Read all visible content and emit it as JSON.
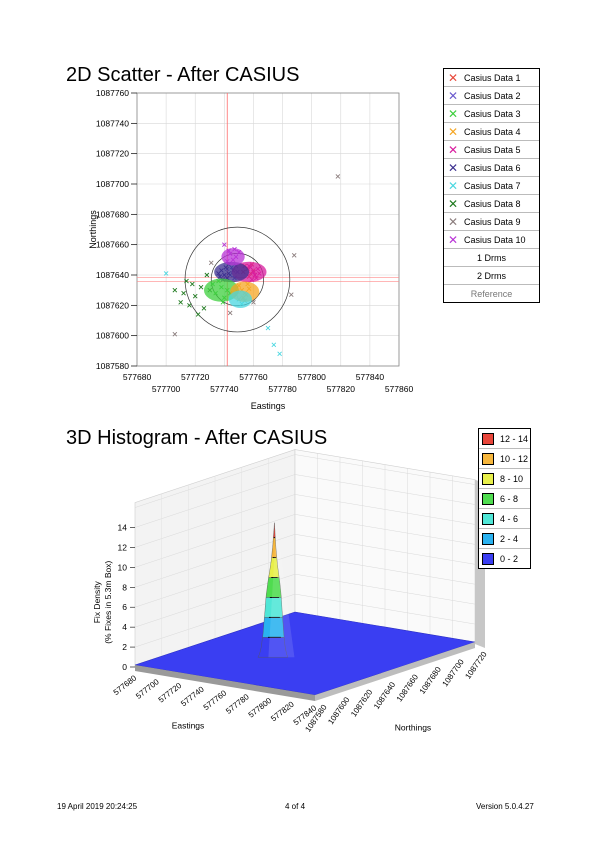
{
  "page": {
    "footer_left": "19 April 2019 20:24:25",
    "footer_center": "4 of 4",
    "footer_right": "Version 5.0.4.27"
  },
  "chart_data": [
    {
      "type": "scatter",
      "title": "2D Scatter - After CASIUS",
      "xlabel": "Eastings",
      "ylabel": "Northings",
      "xlim": [
        577680,
        577860
      ],
      "ylim": [
        1087580,
        1087760
      ],
      "x_ticks_upper": [
        "577680",
        "577720",
        "577760",
        "577800",
        "577840"
      ],
      "x_ticks_lower": [
        "577700",
        "577740",
        "577780",
        "577820",
        "577860"
      ],
      "y_ticks": [
        "1087760",
        "1087740",
        "1087720",
        "1087700",
        "1087680",
        "1087660",
        "1087640",
        "1087620",
        "1087600",
        "1087580"
      ],
      "y_tick_values": [
        1087760,
        1087740,
        1087720,
        1087700,
        1087680,
        1087660,
        1087640,
        1087620,
        1087600,
        1087580
      ],
      "grid": true,
      "legend_position": "right",
      "reference": {
        "x": 577742,
        "y": 1087637
      },
      "circles": [
        {
          "label": "1 Drms",
          "cx": 577749,
          "cy": 1087637,
          "r": 9
        },
        {
          "label": "2 Drms",
          "cx": 577749,
          "cy": 1087637,
          "r": 18
        }
      ],
      "series": [
        {
          "name": "Casius Data 1",
          "color": "#e8483a",
          "points": [
            [
              577756,
              1087644
            ],
            [
              577758,
              1087641
            ],
            [
              577754,
              1087646
            ],
            [
              577760,
              1087643
            ],
            [
              577757,
              1087639
            ],
            [
              577759,
              1087647
            ],
            [
              577753,
              1087642
            ],
            [
              577761,
              1087640
            ]
          ]
        },
        {
          "name": "Casius Data 2",
          "color": "#6a5acd",
          "points": [
            [
              577746,
              1087643
            ],
            [
              577744,
              1087640
            ],
            [
              577748,
              1087646
            ],
            [
              577742,
              1087644
            ],
            [
              577747,
              1087638
            ],
            [
              577743,
              1087647
            ],
            [
              577749,
              1087642
            ],
            [
              577745,
              1087645
            ]
          ]
        },
        {
          "name": "Casius Data 3",
          "color": "#3ecf3e",
          "points": [
            [
              577738,
              1087632
            ],
            [
              577734,
              1087628
            ],
            [
              577740,
              1087625
            ],
            [
              577736,
              1087636
            ],
            [
              577742,
              1087630
            ],
            [
              577732,
              1087634
            ],
            [
              577739,
              1087622
            ],
            [
              577744,
              1087628
            ]
          ]
        },
        {
          "name": "Casius Data 4",
          "color": "#f5a623",
          "points": [
            [
              577752,
              1087630
            ],
            [
              577755,
              1087627
            ],
            [
              577750,
              1087633
            ],
            [
              577757,
              1087631
            ],
            [
              577753,
              1087625
            ],
            [
              577749,
              1087629
            ],
            [
              577756,
              1087634
            ],
            [
              577754,
              1087628
            ]
          ]
        },
        {
          "name": "Casius Data 5",
          "color": "#d81b9e",
          "points": [
            [
              577760,
              1087642
            ],
            [
              577762,
              1087638
            ],
            [
              577758,
              1087645
            ],
            [
              577763,
              1087644
            ],
            [
              577761,
              1087640
            ],
            [
              577764,
              1087641
            ],
            [
              577759,
              1087637
            ],
            [
              577757,
              1087646
            ]
          ]
        },
        {
          "name": "Casius Data 6",
          "color": "#3b2f8f",
          "points": [
            [
              577740,
              1087640
            ],
            [
              577738,
              1087643
            ],
            [
              577742,
              1087638
            ],
            [
              577736,
              1087641
            ],
            [
              577741,
              1087645
            ],
            [
              577739,
              1087637
            ],
            [
              577743,
              1087641
            ],
            [
              577737,
              1087639
            ]
          ]
        },
        {
          "name": "Casius Data 7",
          "color": "#4ad7e0",
          "points": [
            [
              577750,
              1087624
            ],
            [
              577752,
              1087621
            ],
            [
              577748,
              1087627
            ],
            [
              577754,
              1087623
            ],
            [
              577700,
              1087641
            ],
            [
              577770,
              1087605
            ],
            [
              577778,
              1087588
            ],
            [
              577774,
              1087594
            ]
          ]
        },
        {
          "name": "Casius Data 8",
          "color": "#1f7a1f",
          "points": [
            [
              577720,
              1087626
            ],
            [
              577716,
              1087620
            ],
            [
              577724,
              1087632
            ],
            [
              577712,
              1087628
            ],
            [
              577726,
              1087618
            ],
            [
              577718,
              1087634
            ],
            [
              577710,
              1087622
            ],
            [
              577730,
              1087630
            ],
            [
              577714,
              1087636
            ],
            [
              577722,
              1087614
            ],
            [
              577706,
              1087630
            ],
            [
              577728,
              1087640
            ]
          ]
        },
        {
          "name": "Casius Data 9",
          "color": "#8b7d7d",
          "points": [
            [
              577818,
              1087705
            ],
            [
              577788,
              1087653
            ],
            [
              577786,
              1087627
            ],
            [
              577706,
              1087601
            ],
            [
              577731,
              1087648
            ],
            [
              577760,
              1087622
            ],
            [
              577744,
              1087615
            ]
          ]
        },
        {
          "name": "Casius Data 10",
          "color": "#b833d6",
          "points": [
            [
              577746,
              1087650
            ],
            [
              577744,
              1087654
            ],
            [
              577748,
              1087652
            ],
            [
              577742,
              1087649
            ],
            [
              577747,
              1087657
            ],
            [
              577743,
              1087656
            ],
            [
              577740,
              1087660
            ],
            [
              577750,
              1087655
            ]
          ]
        }
      ],
      "legend_extra": [
        "1 Drms",
        "2 Drms",
        "Reference"
      ]
    },
    {
      "type": "heatmap",
      "subtype": "3d-surface-histogram",
      "title": "3D Histogram - After CASIUS",
      "xlabel": "Eastings",
      "ylabel": "Northings",
      "zlabel_line1": "Fix Density",
      "zlabel_line2": "(% Fixes in 5.3m Box)",
      "z_ticks": [
        "0",
        "2",
        "4",
        "6",
        "8",
        "10",
        "12",
        "14"
      ],
      "zlim": [
        0,
        14
      ],
      "x_ticks": [
        "577680",
        "577700",
        "577720",
        "577740",
        "577760",
        "577780",
        "577800",
        "577820",
        "577840"
      ],
      "y_ticks": [
        "1087580",
        "1087600",
        "1087620",
        "1087640",
        "1087660",
        "1087680",
        "1087700",
        "1087720"
      ],
      "peak": {
        "x": 577745,
        "y": 1087638,
        "z": 13.5
      },
      "profile": [
        0,
        0.3,
        1,
        2.2,
        4.1,
        6.2,
        7.5,
        8.5,
        9.6,
        11.2,
        13.5
      ],
      "legend_position": "top-right",
      "legend": [
        {
          "label": "12 - 14",
          "color": "#e8463a"
        },
        {
          "label": "10 - 12",
          "color": "#f6b63c"
        },
        {
          "label": "8 - 10",
          "color": "#e8ef4a"
        },
        {
          "label": "6 - 8",
          "color": "#4fdc4f"
        },
        {
          "label": "4 - 6",
          "color": "#4fe6d6"
        },
        {
          "label": "2 - 4",
          "color": "#2ab2f0"
        },
        {
          "label": "0 - 2",
          "color": "#3a3ef2"
        }
      ]
    }
  ]
}
